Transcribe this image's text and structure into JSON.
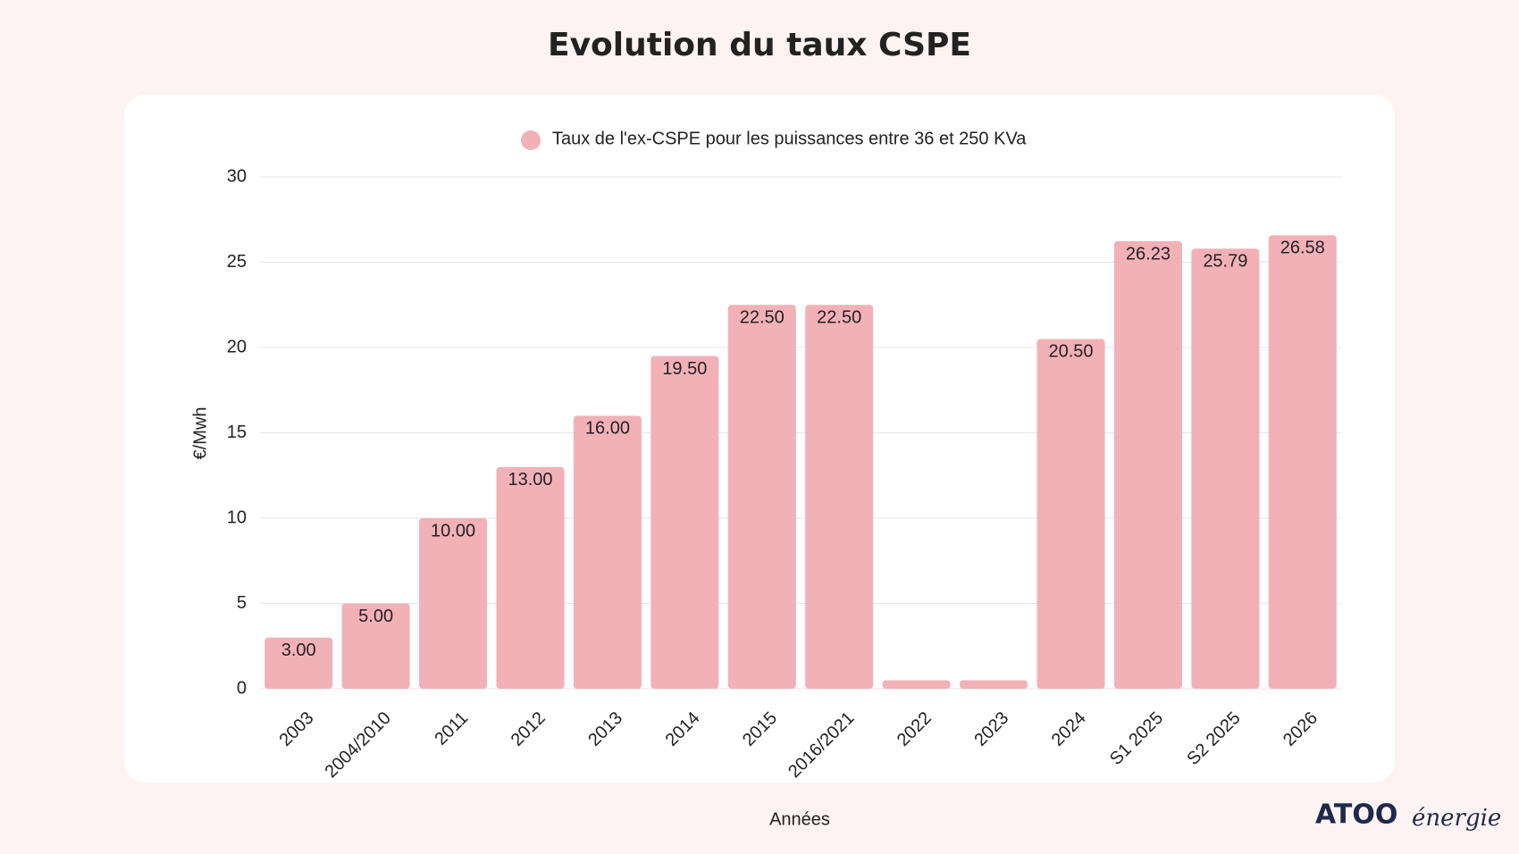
{
  "chart_data": {
    "type": "bar",
    "title": "Evolution du taux CSPE",
    "categories": [
      "2003",
      "2004/2010",
      "2011",
      "2012",
      "2013",
      "2014",
      "2015",
      "2016/2021",
      "2022",
      "2023",
      "2024",
      "S1 2025",
      "S2 2025",
      "2026"
    ],
    "series": [
      {
        "name": "Taux de l'ex-CSPE pour les puissances entre 36 et 250 KVa",
        "color": "#f2b1b7",
        "values": [
          3,
          5,
          10,
          13,
          16,
          19.5,
          22.5,
          22.5,
          0.5,
          0.5,
          20.5,
          26.23,
          25.79,
          26.58
        ],
        "value_labels": [
          "3.00",
          "5.00",
          "10.00",
          "13.00",
          "16.00",
          "19.50",
          "22.50",
          "22.50",
          null,
          null,
          "20.50",
          "26.23",
          "25.79",
          "26.58"
        ]
      }
    ],
    "ylim": [
      0,
      30
    ],
    "yticks": [
      0,
      5,
      10,
      15,
      20,
      25,
      30
    ],
    "grid": true,
    "ylabel": "€/Mwh",
    "xlabel": "Années",
    "legend": "top"
  },
  "logo": {
    "brand": "ATOO",
    "tagline": "énergie"
  }
}
